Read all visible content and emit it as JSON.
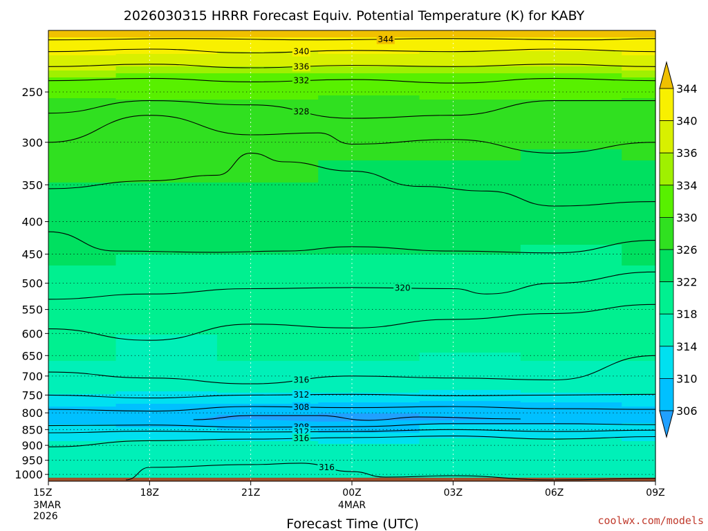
{
  "chart_data": {
    "type": "heatmap",
    "title": "2026030315 HRRR Forecast Equiv. Potential Temperature (K) for KABY",
    "xlabel": "Forecast Time (UTC)",
    "ylabel": "",
    "x_ticks": [
      {
        "label": "15Z",
        "sub": [
          "3MAR",
          "2026"
        ],
        "hours": 0
      },
      {
        "label": "18Z",
        "sub": [],
        "hours": 3
      },
      {
        "label": "21Z",
        "sub": [],
        "hours": 6
      },
      {
        "label": "00Z",
        "sub": [
          "4MAR"
        ],
        "hours": 9
      },
      {
        "label": "03Z",
        "sub": [],
        "hours": 12
      },
      {
        "label": "06Z",
        "sub": [],
        "hours": 15
      },
      {
        "label": "09Z",
        "sub": [],
        "hours": 18
      }
    ],
    "y_ticks": [
      250,
      300,
      350,
      400,
      450,
      500,
      550,
      600,
      650,
      700,
      750,
      800,
      850,
      900,
      950,
      1000
    ],
    "y_scale": "log",
    "y_range_hPa": [
      200,
      1025
    ],
    "grid": "dotted",
    "colorbar": {
      "labels": [
        306,
        310,
        314,
        318,
        322,
        326,
        330,
        334,
        336,
        340,
        344
      ],
      "bands": [
        {
          "lo": 302,
          "hi": 306,
          "color": "#20a0ff"
        },
        {
          "lo": 306,
          "hi": 310,
          "color": "#00c0ff"
        },
        {
          "lo": 310,
          "hi": 314,
          "color": "#00e0f0"
        },
        {
          "lo": 314,
          "hi": 318,
          "color": "#00f0b8"
        },
        {
          "lo": 318,
          "hi": 322,
          "color": "#00f090"
        },
        {
          "lo": 322,
          "hi": 326,
          "color": "#00e060"
        },
        {
          "lo": 326,
          "hi": 330,
          "color": "#30e020"
        },
        {
          "lo": 330,
          "hi": 334,
          "color": "#58f000"
        },
        {
          "lo": 334,
          "hi": 336,
          "color": "#a0f000"
        },
        {
          "lo": 336,
          "hi": 340,
          "color": "#d8f000"
        },
        {
          "lo": 340,
          "hi": 344,
          "color": "#f8f000"
        },
        {
          "lo": 344,
          "hi": 348,
          "color": "#f0c000"
        }
      ]
    },
    "fields": [
      {
        "hours": [
          0,
          3,
          6,
          9,
          12,
          15,
          18
        ],
        "pressure_hPa": 205,
        "theta_e_K": [
          344,
          344,
          344,
          344,
          344,
          344,
          344
        ]
      },
      {
        "hours": [
          0,
          3,
          6,
          9,
          12,
          15,
          18
        ],
        "pressure_hPa": 215,
        "theta_e_K": [
          341,
          341,
          340,
          341,
          340,
          340,
          341
        ]
      },
      {
        "hours": [
          0,
          3,
          6,
          9,
          12,
          15,
          18
        ],
        "pressure_hPa": 227,
        "theta_e_K": [
          337,
          336,
          336,
          336,
          336,
          336,
          337
        ]
      },
      {
        "hours": [
          0,
          3,
          6,
          9,
          12,
          15,
          18
        ],
        "pressure_hPa": 240,
        "theta_e_K": [
          333,
          332,
          332,
          332,
          332,
          332,
          333
        ]
      },
      {
        "hours": [
          0,
          3,
          6,
          9,
          12,
          15,
          18
        ],
        "pressure_hPa": 265,
        "theta_e_K": [
          328,
          329,
          329,
          328,
          329,
          329,
          328
        ]
      },
      {
        "hours": [
          0,
          3,
          6,
          9,
          12,
          15,
          18
        ],
        "pressure_hPa": 320,
        "theta_e_K": [
          327,
          327,
          327,
          326,
          326,
          325,
          326
        ]
      },
      {
        "hours": [
          0,
          3,
          6,
          9,
          12,
          15,
          18
        ],
        "pressure_hPa": 400,
        "theta_e_K": [
          324,
          324,
          324,
          324,
          324,
          323,
          324
        ]
      },
      {
        "hours": [
          0,
          3,
          6,
          9,
          12,
          15,
          18
        ],
        "pressure_hPa": 500,
        "theta_e_K": [
          321,
          320,
          320,
          320,
          320,
          320,
          321
        ]
      },
      {
        "hours": [
          0,
          3,
          6,
          9,
          12,
          15,
          18
        ],
        "pressure_hPa": 600,
        "theta_e_K": [
          319,
          318,
          319,
          319,
          319,
          319,
          319
        ]
      },
      {
        "hours": [
          0,
          3,
          6,
          9,
          12,
          15,
          18
        ],
        "pressure_hPa": 720,
        "theta_e_K": [
          317,
          316,
          317,
          317,
          316,
          317,
          317
        ]
      },
      {
        "hours": [
          0,
          3,
          6,
          9,
          12,
          15,
          18
        ],
        "pressure_hPa": 780,
        "theta_e_K": [
          310,
          309,
          309,
          308,
          308,
          308,
          310
        ]
      },
      {
        "hours": [
          0,
          3,
          6,
          9,
          12,
          15,
          18
        ],
        "pressure_hPa": 810,
        "theta_e_K": [
          307,
          307,
          305,
          305,
          307,
          307,
          308
        ]
      },
      {
        "hours": [
          0,
          3,
          6,
          9,
          12,
          15,
          18
        ],
        "pressure_hPa": 850,
        "theta_e_K": [
          312,
          311,
          310,
          309,
          312,
          312,
          312
        ]
      },
      {
        "hours": [
          0,
          3,
          6,
          9,
          12,
          15,
          18
        ],
        "pressure_hPa": 900,
        "theta_e_K": [
          315,
          316,
          316,
          315,
          316,
          316,
          315
        ]
      },
      {
        "hours": [
          0,
          3,
          6,
          9,
          12,
          15,
          18
        ],
        "pressure_hPa": 1000,
        "theta_e_K": [
          316,
          317,
          317,
          316,
          317,
          317,
          316
        ]
      }
    ],
    "contours": [
      {
        "value": 344,
        "label": "344",
        "points": [
          [
            0,
            207
          ],
          [
            4,
            206
          ],
          [
            8,
            207
          ],
          [
            12,
            206
          ],
          [
            16,
            207
          ],
          [
            18,
            206
          ]
        ]
      },
      {
        "value": 340,
        "label": "340",
        "points": [
          [
            0,
            216
          ],
          [
            3,
            214
          ],
          [
            6,
            217
          ],
          [
            9,
            215
          ],
          [
            12,
            216
          ],
          [
            15,
            214
          ],
          [
            18,
            216
          ]
        ]
      },
      {
        "value": 336,
        "label": "336",
        "points": [
          [
            0,
            228
          ],
          [
            3,
            226
          ],
          [
            6,
            229
          ],
          [
            9,
            227
          ],
          [
            12,
            228
          ],
          [
            15,
            226
          ],
          [
            18,
            228
          ]
        ]
      },
      {
        "value": 332,
        "label": "332",
        "points": [
          [
            0,
            240
          ],
          [
            3,
            238
          ],
          [
            6,
            241
          ],
          [
            9,
            239
          ],
          [
            12,
            242
          ],
          [
            15,
            238
          ],
          [
            18,
            240
          ]
        ]
      },
      {
        "value": 328,
        "label": "328",
        "points": [
          [
            0,
            270
          ],
          [
            3,
            258
          ],
          [
            6,
            262
          ],
          [
            9,
            275
          ],
          [
            12,
            272
          ],
          [
            15,
            258
          ],
          [
            18,
            258
          ]
        ]
      },
      {
        "value": 326,
        "label": "",
        "points": [
          [
            0,
            300
          ],
          [
            3,
            272
          ],
          [
            6,
            292
          ],
          [
            8,
            290
          ],
          [
            9,
            302
          ],
          [
            12,
            297
          ],
          [
            15,
            312
          ],
          [
            18,
            300
          ]
        ]
      },
      {
        "value": 324,
        "label": "",
        "points": [
          [
            0,
            355
          ],
          [
            3,
            345
          ],
          [
            5,
            338
          ],
          [
            6,
            312
          ],
          [
            7,
            322
          ],
          [
            9,
            333
          ],
          [
            11,
            352
          ],
          [
            13,
            358
          ],
          [
            15,
            378
          ],
          [
            18,
            372
          ]
        ]
      },
      {
        "value": 322,
        "label": "",
        "points": [
          [
            0,
            415
          ],
          [
            2,
            445
          ],
          [
            5,
            447
          ],
          [
            7,
            445
          ],
          [
            9,
            438
          ],
          [
            12,
            445
          ],
          [
            15,
            448
          ],
          [
            18,
            428
          ]
        ]
      },
      {
        "value": 320,
        "label": "320",
        "points": [
          [
            0,
            530
          ],
          [
            3,
            520
          ],
          [
            6,
            510
          ],
          [
            9,
            508
          ],
          [
            12,
            510
          ],
          [
            13,
            520
          ],
          [
            15,
            500
          ],
          [
            18,
            480
          ]
        ]
      },
      {
        "value": 318,
        "label": "",
        "points": [
          [
            0,
            590
          ],
          [
            3,
            615
          ],
          [
            6,
            580
          ],
          [
            9,
            588
          ],
          [
            12,
            570
          ],
          [
            15,
            558
          ],
          [
            18,
            540
          ]
        ]
      },
      {
        "value": 316,
        "label": "316",
        "points": [
          [
            0,
            690
          ],
          [
            3,
            705
          ],
          [
            6,
            720
          ],
          [
            9,
            700
          ],
          [
            12,
            705
          ],
          [
            15,
            710
          ],
          [
            18,
            650
          ]
        ]
      },
      {
        "value": 312,
        "label": "312",
        "points": [
          [
            0,
            750
          ],
          [
            3,
            758
          ],
          [
            6,
            750
          ],
          [
            9,
            748
          ],
          [
            12,
            752
          ],
          [
            15,
            750
          ],
          [
            18,
            748
          ]
        ]
      },
      {
        "value": 308,
        "label": "308",
        "points": [
          [
            0,
            790
          ],
          [
            3,
            795
          ],
          [
            6,
            782
          ],
          [
            9,
            785
          ],
          [
            12,
            782
          ],
          [
            15,
            788
          ],
          [
            18,
            790
          ]
        ]
      },
      {
        "value": 306,
        "label": "",
        "points": [
          [
            4.3,
            820
          ],
          [
            6,
            808
          ],
          [
            8,
            808
          ],
          [
            9.5,
            822
          ],
          [
            11,
            812
          ],
          [
            14,
            818
          ]
        ]
      },
      {
        "value": 308,
        "label": "308",
        "points": [
          [
            0,
            838
          ],
          [
            3,
            836
          ],
          [
            6,
            843
          ],
          [
            9,
            841
          ],
          [
            12,
            832
          ],
          [
            15,
            832
          ],
          [
            18,
            835
          ]
        ]
      },
      {
        "value": 312,
        "label": "312",
        "points": [
          [
            0,
            860
          ],
          [
            3,
            855
          ],
          [
            6,
            858
          ],
          [
            9,
            856
          ],
          [
            12,
            850
          ],
          [
            15,
            856
          ],
          [
            18,
            852
          ]
        ]
      },
      {
        "value": 316,
        "label": "316",
        "points": [
          [
            0,
            905
          ],
          [
            3,
            885
          ],
          [
            6,
            880
          ],
          [
            9,
            875
          ],
          [
            12,
            870
          ],
          [
            15,
            880
          ],
          [
            18,
            872
          ]
        ]
      },
      {
        "value": 316,
        "label": "316",
        "points": [
          [
            2.3,
            1020
          ],
          [
            3,
            975
          ],
          [
            6,
            965
          ],
          [
            7.5,
            960
          ],
          [
            9,
            990
          ],
          [
            10,
            1010
          ],
          [
            12,
            1005
          ],
          [
            15,
            1020
          ],
          [
            18,
            1015
          ]
        ]
      }
    ],
    "annotations": [
      "coolwx.com/models"
    ]
  }
}
